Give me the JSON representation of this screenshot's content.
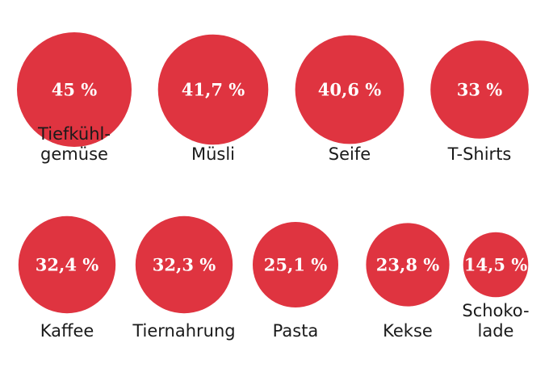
{
  "chart_data": {
    "type": "bubble",
    "unit": "%",
    "decimal_separator": ",",
    "items": [
      {
        "category": "Tiefkühlgemüse",
        "label_lines": [
          "Tiefkühl-",
          "gemüse"
        ],
        "value": 45.0,
        "display": "45 %"
      },
      {
        "category": "Müsli",
        "label_lines": [
          "Müsli"
        ],
        "value": 41.7,
        "display": "41,7 %"
      },
      {
        "category": "Seife",
        "label_lines": [
          "Seife"
        ],
        "value": 40.6,
        "display": "40,6 %"
      },
      {
        "category": "T-Shirts",
        "label_lines": [
          "T-Shirts"
        ],
        "value": 33.0,
        "display": "33 %"
      },
      {
        "category": "Kaffee",
        "label_lines": [
          "Kaffee"
        ],
        "value": 32.4,
        "display": "32,4 %"
      },
      {
        "category": "Tiernahrung",
        "label_lines": [
          "Tiernahrung"
        ],
        "value": 32.3,
        "display": "32,3 %"
      },
      {
        "category": "Pasta",
        "label_lines": [
          "Pasta"
        ],
        "value": 25.1,
        "display": "25,1 %"
      },
      {
        "category": "Kekse",
        "label_lines": [
          "Kekse"
        ],
        "value": 23.8,
        "display": "23,8 %"
      },
      {
        "category": "Schokolade",
        "label_lines": [
          "Schoko-",
          "lade"
        ],
        "value": 14.5,
        "display": "14,5 %"
      }
    ],
    "colors": {
      "bubble": "#df3440",
      "value_text": "#ffffff",
      "label_text": "#1a1a1a"
    }
  }
}
